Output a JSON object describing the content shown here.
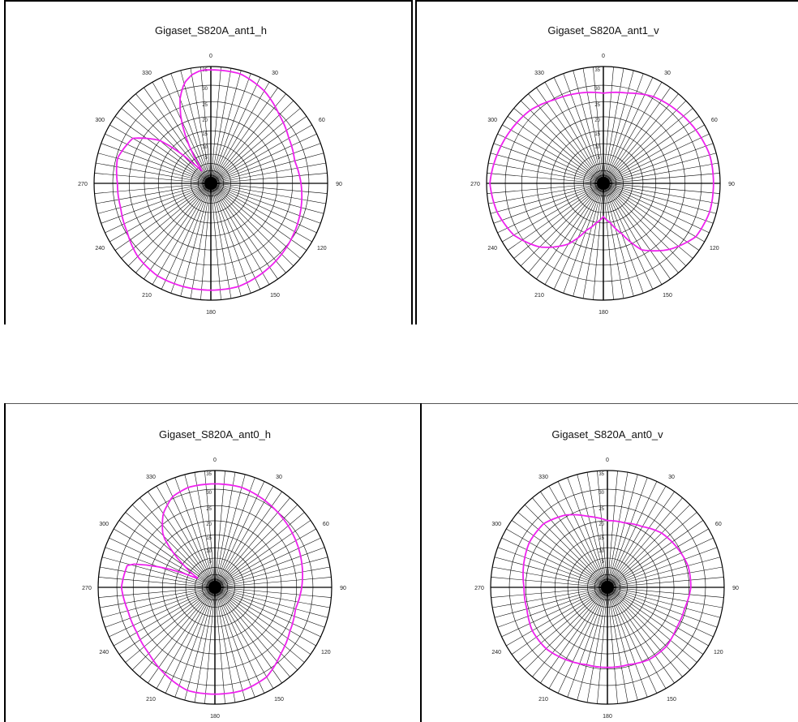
{
  "chart_data": [
    {
      "type": "polar",
      "title": "Gigaset_S820A_ant1_h",
      "angle_ticks": [
        "0",
        "30",
        "60",
        "90",
        "120",
        "150",
        "180",
        "210",
        "240",
        "270",
        "300",
        "330"
      ],
      "radial_ticks": [
        "35",
        "30",
        "25",
        "20",
        "15",
        "10",
        "5"
      ],
      "rlim": [
        0,
        35
      ],
      "color": "#ee22ee",
      "angles": [
        0,
        15,
        30,
        45,
        60,
        75,
        90,
        105,
        120,
        135,
        150,
        165,
        180,
        195,
        210,
        225,
        240,
        255,
        270,
        285,
        300,
        310,
        318,
        325,
        330,
        335,
        340,
        345,
        350,
        355
      ],
      "values": [
        34,
        34,
        32,
        29,
        27,
        26,
        27,
        28,
        29,
        30,
        31,
        32,
        32,
        32,
        32,
        31,
        29,
        28,
        28,
        29,
        27,
        20,
        8,
        4,
        13,
        21,
        27,
        31,
        33,
        34
      ]
    },
    {
      "type": "polar",
      "title": "Gigaset_S820A_ant1_v",
      "angle_ticks": [
        "0",
        "30",
        "60",
        "90",
        "120",
        "150",
        "180",
        "210",
        "240",
        "270",
        "300",
        "330"
      ],
      "radial_ticks": [
        "35",
        "30",
        "25",
        "20",
        "15",
        "10",
        "5"
      ],
      "rlim": [
        0,
        35
      ],
      "color": "#ee22ee",
      "angles": [
        0,
        15,
        30,
        45,
        60,
        75,
        90,
        105,
        120,
        135,
        150,
        160,
        170,
        180,
        190,
        200,
        210,
        225,
        240,
        255,
        270,
        285,
        300,
        315,
        330,
        345
      ],
      "values": [
        27,
        28,
        30,
        31,
        32,
        33,
        33,
        33,
        32,
        28,
        23,
        16,
        12,
        10,
        12,
        15,
        21,
        27,
        31,
        33,
        34,
        33,
        32,
        31,
        29,
        28
      ]
    },
    {
      "type": "polar",
      "title": "Gigaset_S820A_ant0_h",
      "angle_ticks": [
        "0",
        "30",
        "60",
        "90",
        "120",
        "150",
        "180",
        "210",
        "240",
        "270",
        "300",
        "330"
      ],
      "radial_ticks": [
        "35",
        "30",
        "25",
        "20",
        "15",
        "10",
        "5"
      ],
      "rlim": [
        0,
        35
      ],
      "color": "#ee22ee",
      "angles": [
        0,
        15,
        30,
        45,
        60,
        75,
        90,
        105,
        120,
        135,
        150,
        165,
        180,
        195,
        210,
        225,
        240,
        255,
        270,
        285,
        290,
        297,
        305,
        315,
        325,
        335,
        345,
        355
      ],
      "values": [
        31,
        31,
        30,
        29,
        28,
        27,
        26,
        25,
        26,
        28,
        31,
        32,
        32,
        32,
        30,
        28,
        27,
        27,
        28,
        27,
        18,
        5,
        11,
        22,
        27,
        30,
        31,
        31
      ]
    },
    {
      "type": "polar",
      "title": "Gigaset_S820A_ant0_v",
      "angle_ticks": [
        "0",
        "30",
        "60",
        "90",
        "120",
        "150",
        "180",
        "210",
        "240",
        "270",
        "300",
        "330"
      ],
      "radial_ticks": [
        "35",
        "30",
        "25",
        "20",
        "15",
        "10",
        "5"
      ],
      "rlim": [
        0,
        35
      ],
      "color": "#ee22ee",
      "angles": [
        0,
        15,
        30,
        45,
        60,
        75,
        90,
        105,
        120,
        135,
        150,
        165,
        180,
        195,
        210,
        225,
        240,
        255,
        270,
        285,
        300,
        315,
        330,
        345
      ],
      "values": [
        20,
        20,
        21,
        23,
        24,
        25,
        25,
        24,
        24,
        25,
        25,
        24,
        24,
        24,
        25,
        26,
        26,
        25,
        25,
        26,
        27,
        27,
        25,
        22
      ]
    }
  ]
}
